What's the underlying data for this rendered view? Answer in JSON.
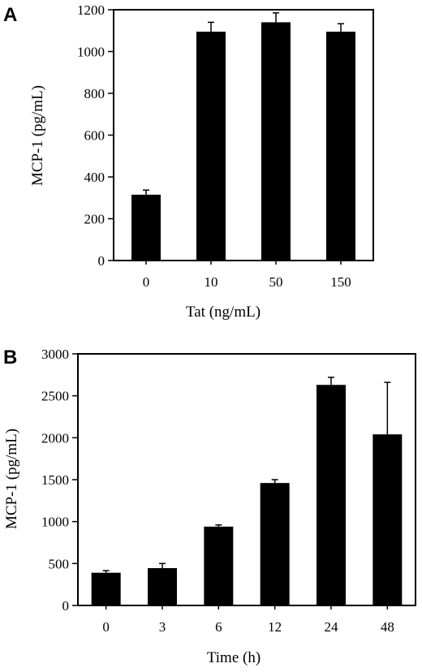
{
  "chart_data": [
    {
      "type": "bar",
      "panel": "A",
      "xlabel": "Tat (ng/mL)",
      "ylabel": "MCP-1 (pg/mL)",
      "categories": [
        "0",
        "10",
        "50",
        "150"
      ],
      "values": [
        315,
        1095,
        1140,
        1095
      ],
      "errors": [
        22,
        45,
        45,
        38
      ],
      "yticks": [
        "0",
        "200",
        "400",
        "600",
        "800",
        "1000",
        "1200"
      ],
      "ylim": [
        0,
        1200
      ],
      "grid": false,
      "bar_color": "#000000"
    },
    {
      "type": "bar",
      "panel": "B",
      "xlabel": "Time (h)",
      "ylabel": "MCP-1 (pg/mL)",
      "categories": [
        "0",
        "3",
        "6",
        "12",
        "24",
        "48"
      ],
      "values": [
        390,
        445,
        940,
        1460,
        2630,
        2040
      ],
      "errors": [
        25,
        55,
        20,
        40,
        90,
        620
      ],
      "yticks": [
        "0",
        "500",
        "1000",
        "1500",
        "2000",
        "2500",
        "3000"
      ],
      "ylim": [
        0,
        3000
      ],
      "grid": false,
      "bar_color": "#000000"
    }
  ]
}
